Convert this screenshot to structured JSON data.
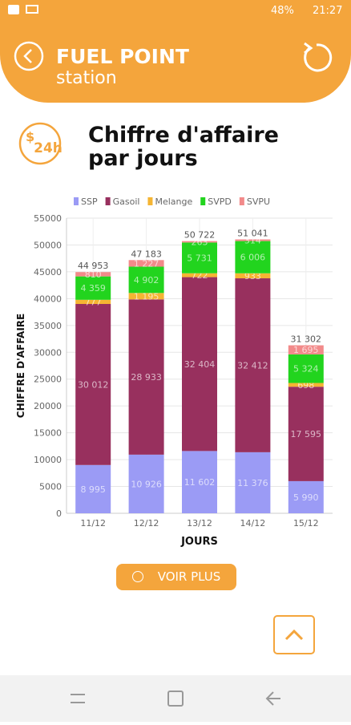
{
  "page": {
    "battery": "48%",
    "time": "21:27",
    "brand": "FUEL POINT",
    "subtitle": "station",
    "icon_text": "24h",
    "button": "VOIR PLUS"
  },
  "chart_data": {
    "type": "stacked_bar",
    "title": "Chiffre d'affaire par jours",
    "x_label": "JOURS",
    "y_label": "CHIFFRE D'AFFAIRE",
    "categories": [
      "11/12",
      "12/12",
      "13/12",
      "14/12",
      "15/12"
    ],
    "series": [
      {
        "name": "SSP",
        "color": "#9b9bf5",
        "values": [
          8995,
          10926,
          11602,
          11376,
          5990
        ],
        "value_labels": [
          "8 995",
          "10 926",
          "11 602",
          "11 376",
          "5 990"
        ]
      },
      {
        "name": "Gasoil",
        "color": "#98305e",
        "values": [
          30012,
          28933,
          32404,
          32412,
          17595
        ],
        "value_labels": [
          "30 012",
          "28 933",
          "32 404",
          "32 412",
          "17 595"
        ]
      },
      {
        "name": "Melange",
        "color": "#f5b533",
        "values": [
          777,
          1195,
          722,
          933,
          698
        ],
        "value_labels": [
          "777",
          "1 195",
          "722",
          "933",
          "698"
        ]
      },
      {
        "name": "SVPD",
        "color": "#22d41e",
        "values": [
          4359,
          4902,
          5731,
          6006,
          5324
        ],
        "value_labels": [
          "4 359",
          "4 902",
          "5 731",
          "6 006",
          "5 324"
        ]
      },
      {
        "name": "SVPU",
        "color": "#f28a8a",
        "values": [
          810,
          1227,
          263,
          314,
          1695
        ],
        "value_labels": [
          "810",
          "1 227",
          "263",
          "314",
          "1 695"
        ]
      }
    ],
    "totals": [
      44953,
      47183,
      50722,
      51041,
      31302
    ],
    "total_labels": [
      "44 953",
      "47 183",
      "50 722",
      "51 041",
      "31 302"
    ],
    "ylim": [
      0,
      55000
    ],
    "yticks": [
      0,
      5000,
      10000,
      15000,
      20000,
      25000,
      30000,
      35000,
      40000,
      45000,
      50000,
      55000
    ],
    "grid": true
  }
}
